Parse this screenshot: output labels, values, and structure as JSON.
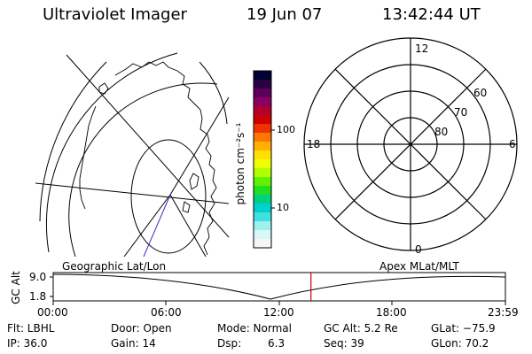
{
  "header": {
    "title": "Ultraviolet Imager",
    "date": "19 Jun 07",
    "time": "13:42:44 UT"
  },
  "geo_map": {
    "label": "Geographic Lat/Lon"
  },
  "colorbar": {
    "unit_label": "photon cm⁻²s⁻¹",
    "ticks": [
      "100",
      "10"
    ],
    "colors": [
      "#000033",
      "#2a0040",
      "#5a005a",
      "#8a0060",
      "#b00030",
      "#d00000",
      "#ee3300",
      "#ff7700",
      "#ffb000",
      "#ffe000",
      "#f0ff00",
      "#b0ff00",
      "#60f000",
      "#20e020",
      "#00d080",
      "#00d0d0",
      "#40e0e0",
      "#a0f0f0",
      "#d8f8f8",
      "#f6f6f6"
    ]
  },
  "polar_plot": {
    "label": "Apex MLat/MLT",
    "mlt_labels": {
      "top": "12",
      "left": "18",
      "right": "6",
      "bottom": "0"
    },
    "lat_labels": [
      "60",
      "70",
      "80"
    ]
  },
  "altitude_plot": {
    "ylabel": "GC Alt",
    "y_ticks": [
      "9.0",
      "1.8"
    ],
    "x_ticks": [
      "00:00",
      "06:00",
      "12:00",
      "18:00",
      "23:59"
    ],
    "marker_time_fraction": 0.57,
    "marker_color": "#cc0000"
  },
  "info": {
    "filter": "Flt: LBHL",
    "ip": "IP: 36.0",
    "door": "Door: Open",
    "gain": "Gain: 14",
    "mode": "Mode: Normal",
    "dsp": "Dsp:",
    "dsp_value": "6.3",
    "gc_alt": "GC Alt: 5.2 Re",
    "seq": "Seq: 39",
    "glat": "GLat: −75.9",
    "glon": "GLon:  70.2"
  }
}
